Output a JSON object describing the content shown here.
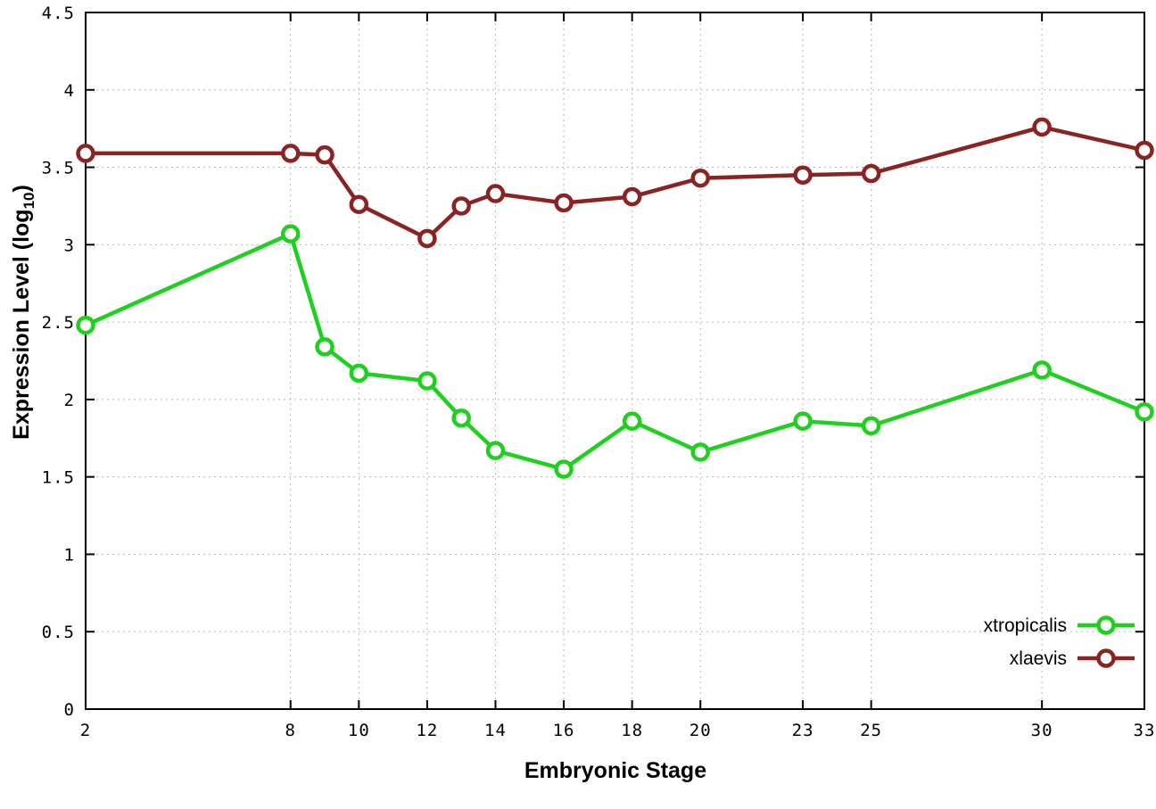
{
  "chart_data": {
    "type": "line",
    "title": "",
    "xlabel": "Embryonic Stage",
    "ylabel_main": "Expression Level (log",
    "ylabel_sub": "10",
    "ylabel_end": ")",
    "x": [
      2,
      8,
      9,
      10,
      12,
      13,
      14,
      16,
      18,
      20,
      23,
      25,
      30,
      33
    ],
    "xlim": [
      2,
      33
    ],
    "ylim": [
      0,
      4.5
    ],
    "xticks": {
      "values": [
        2,
        8,
        10,
        12,
        14,
        16,
        18,
        20,
        23,
        25,
        30,
        33
      ],
      "labels": [
        "2",
        "8",
        "10",
        "12",
        "14",
        "16",
        "18",
        "20",
        "23",
        "25",
        "30",
        "33"
      ]
    },
    "yticks": {
      "values": [
        0,
        0.5,
        1,
        1.5,
        2,
        2.5,
        3,
        3.5,
        4,
        4.5
      ],
      "labels": [
        "0",
        "0.5",
        "1",
        "1.5",
        "2",
        "2.5",
        "3",
        "3.5",
        "4",
        "4.5"
      ]
    },
    "grid": true,
    "legend_position": "bottom-right",
    "series": [
      {
        "name": "xtropicalis",
        "color": "#1fd01f",
        "values": [
          2.48,
          3.07,
          2.34,
          2.17,
          2.12,
          1.88,
          1.67,
          1.55,
          1.86,
          1.66,
          1.86,
          1.83,
          2.19,
          1.92
        ]
      },
      {
        "name": "xlaevis",
        "color": "#8b2323",
        "values": [
          3.59,
          3.59,
          3.58,
          3.26,
          3.04,
          3.25,
          3.33,
          3.27,
          3.31,
          3.43,
          3.45,
          3.46,
          3.76,
          3.61
        ]
      }
    ],
    "background": "#ffffff",
    "axis_color": "#000000",
    "grid_color": "#b8b8b8"
  }
}
